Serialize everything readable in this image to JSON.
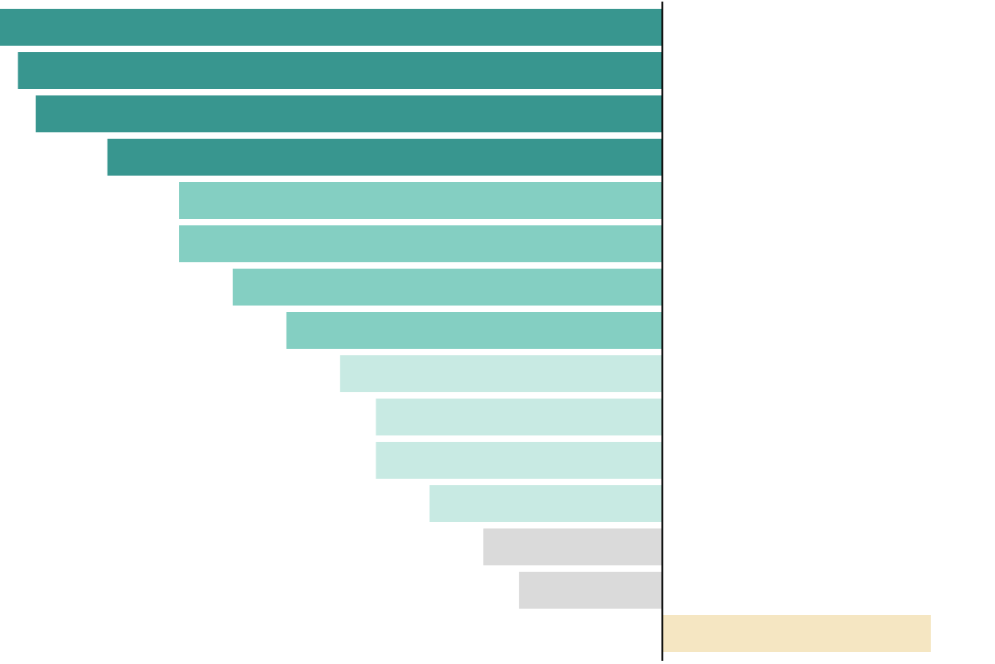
{
  "chart_data": {
    "type": "bar",
    "orientation": "horizontal",
    "title": "",
    "xlabel": "",
    "ylabel": "",
    "grid": false,
    "legend": "none",
    "xlim": [
      -37,
      15
    ],
    "values": [
      -37,
      -36,
      -35,
      -31,
      -27,
      -27,
      -24,
      -21,
      -18,
      -16,
      -16,
      -13,
      -10,
      -8,
      15
    ],
    "colors": [
      "#38968f",
      "#38968f",
      "#38968f",
      "#38968f",
      "#84cfc2",
      "#84cfc2",
      "#84cfc2",
      "#84cfc2",
      "#c8eae3",
      "#c8eae3",
      "#c8eae3",
      "#c8eae3",
      "#dadada",
      "#dadada",
      "#f5e6c2"
    ],
    "zero_line_color": "#000000"
  }
}
